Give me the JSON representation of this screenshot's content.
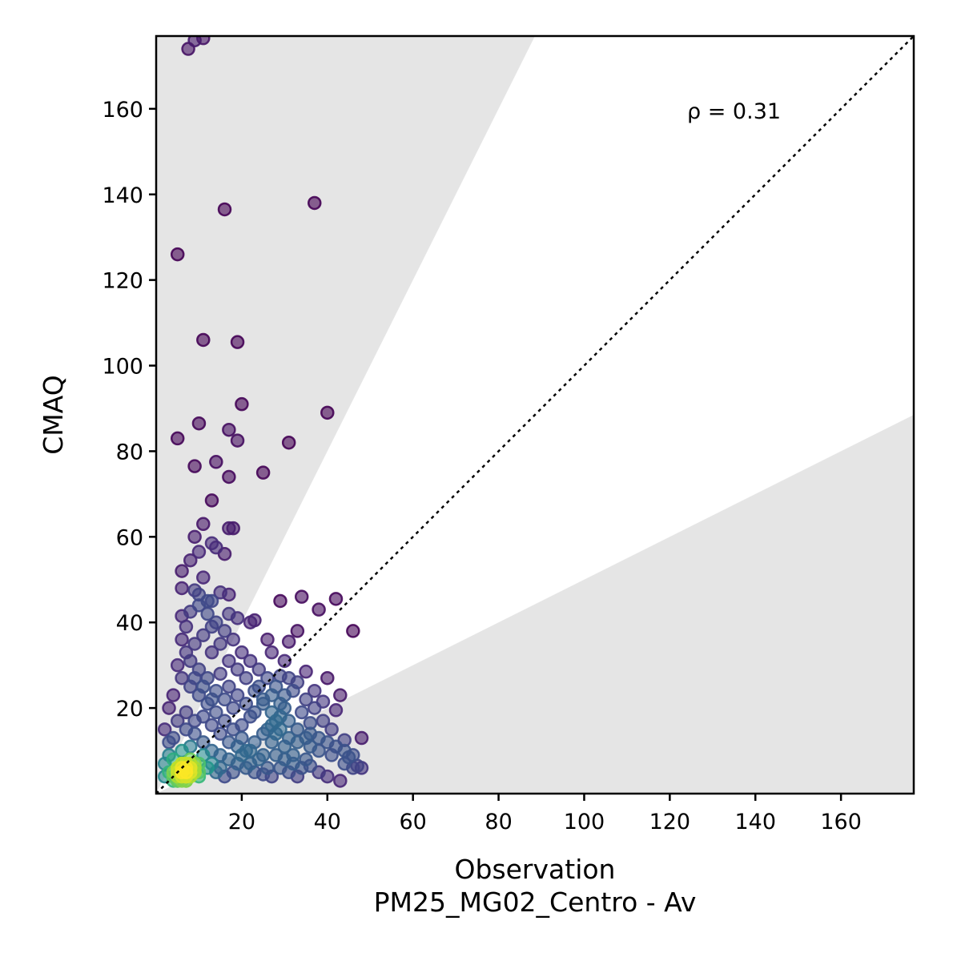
{
  "chart_data": {
    "type": "scatter",
    "xlabel": "Observation",
    "xlabel_sub": "PM25_MG02_Centro - Av",
    "ylabel": "CMAQ",
    "annotation": "ρ = 0.31",
    "xlim": [
      0,
      177
    ],
    "ylim": [
      0,
      177
    ],
    "xticks": [
      20,
      40,
      60,
      80,
      100,
      120,
      140,
      160
    ],
    "yticks": [
      20,
      40,
      60,
      80,
      100,
      120,
      140,
      160
    ],
    "reference_line": "1:1 dotted",
    "shaded_bands": "outside factor-of-2 region",
    "colormap": "viridis (point density)",
    "grid": false,
    "points": [
      [
        7.5,
        174
      ],
      [
        9,
        176
      ],
      [
        11,
        176.5
      ],
      [
        16,
        136.5
      ],
      [
        37,
        138
      ],
      [
        5,
        126
      ],
      [
        11,
        106
      ],
      [
        19,
        105.5
      ],
      [
        20,
        91
      ],
      [
        40,
        89
      ],
      [
        10,
        86.5
      ],
      [
        17,
        85
      ],
      [
        5,
        83
      ],
      [
        19,
        82.5
      ],
      [
        31,
        82
      ],
      [
        9,
        76.5
      ],
      [
        14,
        77.5
      ],
      [
        25,
        75
      ],
      [
        17,
        74
      ],
      [
        13,
        68.5
      ],
      [
        11,
        63
      ],
      [
        17,
        62
      ],
      [
        18,
        62
      ],
      [
        9,
        60
      ],
      [
        13,
        58.5
      ],
      [
        14,
        57.5
      ],
      [
        10,
        56.5
      ],
      [
        16,
        56
      ],
      [
        8,
        54.5
      ],
      [
        6,
        52
      ],
      [
        11,
        50.5
      ],
      [
        6,
        48
      ],
      [
        9,
        47.5
      ],
      [
        10,
        46.5
      ],
      [
        15,
        47
      ],
      [
        17,
        46.5
      ],
      [
        12,
        45
      ],
      [
        13,
        45
      ],
      [
        29,
        45
      ],
      [
        34,
        46
      ],
      [
        42,
        45.5
      ],
      [
        38,
        43
      ],
      [
        6,
        41.5
      ],
      [
        8,
        42.5
      ],
      [
        17,
        42
      ],
      [
        19,
        41
      ],
      [
        22,
        40
      ],
      [
        23,
        40.5
      ],
      [
        33,
        38
      ],
      [
        46,
        38
      ],
      [
        26,
        36
      ],
      [
        31,
        35.5
      ],
      [
        27,
        33
      ],
      [
        30,
        31
      ],
      [
        35,
        28.5
      ],
      [
        29,
        27.5
      ],
      [
        40,
        27
      ],
      [
        33,
        26
      ],
      [
        31,
        27
      ],
      [
        37,
        24
      ],
      [
        43,
        23
      ],
      [
        24,
        25
      ],
      [
        39,
        21.5
      ],
      [
        42,
        19.5
      ],
      [
        30,
        20
      ],
      [
        25,
        22
      ],
      [
        22,
        18
      ],
      [
        28,
        17
      ],
      [
        34,
        19
      ],
      [
        36,
        16.5
      ],
      [
        44,
        12.5
      ],
      [
        48,
        13
      ],
      [
        45,
        8.5
      ],
      [
        47,
        6.5
      ],
      [
        48,
        6
      ],
      [
        43,
        3
      ],
      [
        38,
        5
      ],
      [
        40,
        4
      ],
      [
        35,
        8
      ],
      [
        32,
        9
      ],
      [
        30,
        11
      ],
      [
        27,
        12
      ],
      [
        25,
        9
      ],
      [
        22,
        10
      ],
      [
        20,
        13
      ],
      [
        18,
        15
      ],
      [
        16,
        17
      ],
      [
        14,
        19
      ],
      [
        12,
        21
      ],
      [
        10,
        23
      ],
      [
        8,
        25
      ],
      [
        6,
        27
      ],
      [
        5,
        30
      ],
      [
        7,
        33
      ],
      [
        9,
        35
      ],
      [
        11,
        37
      ],
      [
        13,
        39
      ],
      [
        15,
        28
      ],
      [
        17,
        25
      ],
      [
        19,
        23
      ],
      [
        21,
        21
      ],
      [
        23,
        19
      ],
      [
        26,
        15
      ],
      [
        28,
        14
      ],
      [
        31,
        13
      ],
      [
        33,
        12
      ],
      [
        36,
        11
      ],
      [
        38,
        10
      ],
      [
        41,
        9
      ],
      [
        44,
        7
      ],
      [
        46,
        6
      ],
      [
        3,
        20
      ],
      [
        4,
        23
      ],
      [
        2,
        15
      ],
      [
        3,
        12
      ],
      [
        5,
        17
      ],
      [
        7,
        19
      ],
      [
        9,
        14
      ],
      [
        11,
        12
      ],
      [
        13,
        10
      ],
      [
        15,
        9
      ],
      [
        17,
        8
      ],
      [
        19,
        7
      ],
      [
        21,
        6
      ],
      [
        23,
        5
      ],
      [
        25,
        4.5
      ],
      [
        27,
        4
      ],
      [
        29,
        6
      ],
      [
        31,
        5
      ],
      [
        33,
        4
      ],
      [
        36,
        6.5
      ],
      [
        4,
        8
      ],
      [
        5,
        6
      ],
      [
        6,
        5
      ],
      [
        7,
        4
      ],
      [
        8,
        6
      ],
      [
        9,
        5
      ],
      [
        10,
        4
      ],
      [
        6,
        7
      ],
      [
        7,
        3
      ],
      [
        5,
        3
      ],
      [
        8,
        8
      ],
      [
        10,
        7
      ],
      [
        12,
        6
      ],
      [
        14,
        5
      ],
      [
        16,
        4
      ],
      [
        11,
        9
      ],
      [
        13,
        7
      ],
      [
        15,
        6
      ],
      [
        18,
        5
      ],
      [
        20,
        9
      ],
      [
        22,
        7
      ],
      [
        24,
        8
      ],
      [
        26,
        6
      ],
      [
        28,
        9
      ],
      [
        30,
        8
      ],
      [
        32,
        7
      ],
      [
        34,
        6
      ],
      [
        3,
        5
      ],
      [
        2,
        4
      ],
      [
        4,
        3
      ],
      [
        3,
        9
      ],
      [
        2,
        7
      ],
      [
        6,
        10
      ],
      [
        8,
        11
      ],
      [
        4,
        13
      ],
      [
        7,
        15
      ],
      [
        9,
        17
      ],
      [
        11,
        18
      ],
      [
        13,
        16
      ],
      [
        15,
        14
      ],
      [
        17,
        12
      ],
      [
        19,
        11
      ],
      [
        21,
        10
      ],
      [
        23,
        12
      ],
      [
        25,
        14
      ],
      [
        27,
        16
      ],
      [
        29,
        15
      ],
      [
        20,
        16
      ],
      [
        18,
        20
      ],
      [
        16,
        22
      ],
      [
        14,
        24
      ],
      [
        12,
        27
      ],
      [
        10,
        29
      ],
      [
        8,
        31
      ],
      [
        13,
        33
      ],
      [
        15,
        35
      ],
      [
        17,
        31
      ],
      [
        19,
        29
      ],
      [
        21,
        27
      ],
      [
        23,
        24
      ],
      [
        25,
        21
      ],
      [
        27,
        19
      ],
      [
        29,
        18
      ],
      [
        24,
        29
      ],
      [
        22,
        31
      ],
      [
        20,
        33
      ],
      [
        18,
        36
      ],
      [
        16,
        38
      ],
      [
        14,
        40
      ],
      [
        12,
        42
      ],
      [
        10,
        44
      ],
      [
        7,
        39
      ],
      [
        6,
        36
      ],
      [
        9,
        27
      ],
      [
        11,
        25
      ],
      [
        13,
        22
      ],
      [
        36,
        14
      ],
      [
        38,
        13
      ],
      [
        40,
        12
      ],
      [
        42,
        11
      ],
      [
        44,
        10
      ],
      [
        46,
        9
      ],
      [
        41,
        15
      ],
      [
        39,
        17
      ],
      [
        37,
        20
      ],
      [
        35,
        22
      ],
      [
        32,
        24
      ],
      [
        30,
        23
      ],
      [
        28,
        25
      ],
      [
        26,
        27
      ],
      [
        33,
        15
      ],
      [
        35,
        13
      ],
      [
        31,
        17
      ],
      [
        29,
        21
      ],
      [
        27,
        23
      ]
    ],
    "dense_core": [
      [
        5,
        4
      ],
      [
        6,
        5
      ],
      [
        7,
        6
      ],
      [
        8,
        5
      ],
      [
        6,
        3
      ],
      [
        5,
        6
      ],
      [
        7,
        4
      ],
      [
        8,
        7
      ],
      [
        6,
        6
      ],
      [
        7,
        5
      ],
      [
        9,
        6
      ],
      [
        5,
        5
      ],
      [
        4,
        4
      ],
      [
        6,
        4
      ],
      [
        8,
        4
      ],
      [
        7,
        7
      ],
      [
        9,
        5
      ],
      [
        6,
        7
      ],
      [
        5,
        3
      ],
      [
        8,
        6
      ],
      [
        10,
        5
      ],
      [
        4,
        5
      ],
      [
        7,
        3
      ],
      [
        9,
        7
      ]
    ]
  }
}
